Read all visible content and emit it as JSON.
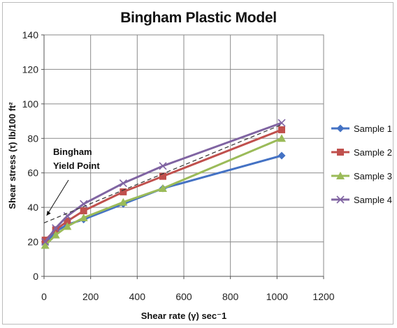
{
  "chart_data": {
    "type": "line",
    "title": "Bingham Plastic Model",
    "xlabel": "Shear rate (γ) sec⁻1",
    "ylabel": "Shear stress (τ) lb/100 ft²",
    "xlim": [
      0,
      1200
    ],
    "ylim": [
      0,
      140
    ],
    "xticks": [
      0,
      200,
      400,
      600,
      800,
      1000,
      1200
    ],
    "yticks": [
      0,
      20,
      40,
      60,
      80,
      100,
      120,
      140
    ],
    "grid": true,
    "legend_position": "right",
    "x": [
      5,
      50,
      100,
      170,
      340,
      510,
      1020
    ],
    "series": [
      {
        "name": "Sample 1",
        "color": "#4472C4",
        "marker": "diamond",
        "values": [
          19,
          26,
          30,
          33,
          42,
          51,
          70
        ]
      },
      {
        "name": "Sample 2",
        "color": "#C0504D",
        "marker": "square",
        "values": [
          21,
          27,
          32,
          38,
          49,
          58,
          85
        ]
      },
      {
        "name": "Sample 3",
        "color": "#9BBB59",
        "marker": "triangle",
        "values": [
          18,
          24,
          29,
          34,
          43,
          51,
          80
        ]
      },
      {
        "name": "Sample 4",
        "color": "#8064A2",
        "marker": "x",
        "values": [
          20,
          28,
          35,
          42,
          54,
          64,
          89
        ]
      }
    ],
    "annotations": [
      {
        "text_lines": [
          "Bingham",
          "Yield Point"
        ],
        "points_to": {
          "x": 5,
          "y": 32
        }
      }
    ],
    "trendline": {
      "style": "dashed",
      "color": "#333333",
      "from": {
        "x": 0,
        "y": 31
      },
      "to": {
        "x": 1020,
        "y": 88
      }
    }
  }
}
